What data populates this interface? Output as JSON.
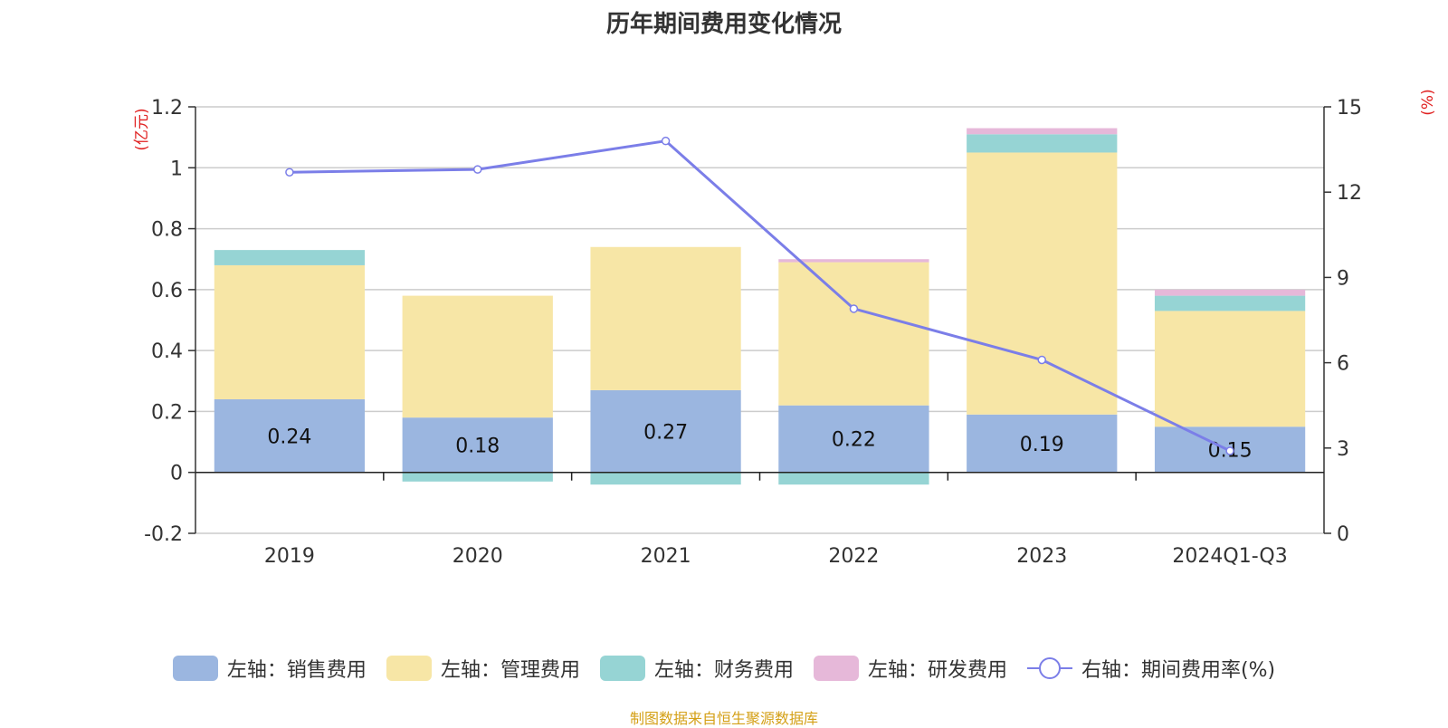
{
  "chart_data": {
    "type": "bar",
    "title": "历年期间费用变化情况",
    "categories": [
      "2019",
      "2020",
      "2021",
      "2022",
      "2023",
      "2024Q1-Q3"
    ],
    "left_axis": {
      "unit_label": "(亿元)",
      "min": -0.2,
      "max": 1.2,
      "ticks": [
        -0.2,
        0,
        0.2,
        0.4,
        0.6,
        0.8,
        1,
        1.2
      ],
      "tick_labels": [
        "-0.2",
        "0",
        "0.2",
        "0.4",
        "0.6",
        "0.8",
        "1",
        "1.2"
      ]
    },
    "right_axis": {
      "unit_label": "(%)",
      "min": 0,
      "max": 15,
      "ticks": [
        0,
        3,
        6,
        9,
        12,
        15
      ],
      "tick_labels": [
        "0",
        "3",
        "6",
        "9",
        "12",
        "15"
      ]
    },
    "series": [
      {
        "name": "左轴：销售费用",
        "axis": "left",
        "kind": "bar",
        "color": "#9bb6e0",
        "values": [
          0.24,
          0.18,
          0.27,
          0.22,
          0.19,
          0.15
        ],
        "labels": [
          "0.24",
          "0.18",
          "0.27",
          "0.22",
          "0.19",
          "0.15"
        ]
      },
      {
        "name": "左轴：管理费用",
        "axis": "left",
        "kind": "bar",
        "color": "#f7e6a6",
        "values": [
          0.44,
          0.4,
          0.47,
          0.47,
          0.86,
          0.38
        ]
      },
      {
        "name": "左轴：财务费用",
        "axis": "left",
        "kind": "bar",
        "color": "#96d4d4",
        "values": [
          0.05,
          -0.03,
          -0.04,
          -0.04,
          0.06,
          0.05
        ]
      },
      {
        "name": "左轴：研发费用",
        "axis": "left",
        "kind": "bar",
        "color": "#e6b8d9",
        "values": [
          0.0,
          0.0,
          0.0,
          0.01,
          0.02,
          0.02
        ]
      },
      {
        "name": "右轴：期间费用率(%)",
        "axis": "right",
        "kind": "line",
        "color": "#7b7ee8",
        "values": [
          12.7,
          12.8,
          13.8,
          7.9,
          6.1,
          2.9
        ]
      }
    ]
  },
  "source_note": "制图数据来自恒生聚源数据库"
}
